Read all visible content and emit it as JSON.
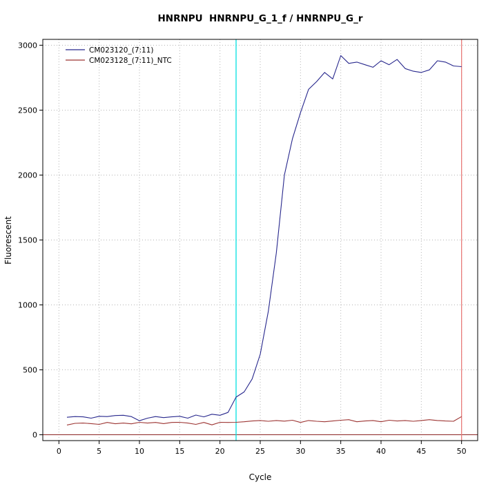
{
  "chart_data": {
    "type": "line",
    "title": "HNRNPU  HNRNPU_G_1_f / HNRNPU_G_r",
    "xlabel": "Cycle",
    "ylabel": "Fluorescent",
    "xlim": [
      0,
      50
    ],
    "ylim": [
      0,
      3000
    ],
    "x_ticks": [
      0,
      5,
      10,
      15,
      20,
      25,
      30,
      35,
      40,
      45,
      50
    ],
    "y_ticks": [
      0,
      500,
      1000,
      1500,
      2000,
      2500,
      3000
    ],
    "grid": true,
    "grid_color": "#b3b3b3",
    "legend_position": "top-left",
    "x": [
      1,
      2,
      3,
      4,
      5,
      6,
      7,
      8,
      9,
      10,
      11,
      12,
      13,
      14,
      15,
      16,
      17,
      18,
      19,
      20,
      21,
      22,
      23,
      24,
      25,
      26,
      27,
      28,
      29,
      30,
      31,
      32,
      33,
      34,
      35,
      36,
      37,
      38,
      39,
      40,
      41,
      42,
      43,
      44,
      45,
      46,
      47,
      48,
      49,
      50
    ],
    "series": [
      {
        "name": "CM023120_(7:11)",
        "color": "#26268c",
        "values": [
          135,
          140,
          138,
          128,
          142,
          140,
          148,
          150,
          140,
          108,
          128,
          140,
          132,
          138,
          142,
          128,
          152,
          138,
          158,
          150,
          172,
          290,
          330,
          430,
          620,
          950,
          1400,
          2000,
          2280,
          2480,
          2660,
          2720,
          2790,
          2740,
          2920,
          2860,
          2870,
          2850,
          2830,
          2880,
          2850,
          2890,
          2820,
          2800,
          2790,
          2810,
          2880,
          2870,
          2840,
          2835
        ]
      },
      {
        "name": "CM023128_(7:11)_NTC",
        "color": "#9c3331",
        "values": [
          75,
          88,
          90,
          86,
          80,
          95,
          85,
          90,
          84,
          96,
          90,
          95,
          86,
          95,
          96,
          90,
          80,
          95,
          76,
          96,
          95,
          96,
          100,
          106,
          110,
          104,
          110,
          105,
          112,
          95,
          110,
          104,
          100,
          106,
          112,
          116,
          100,
          106,
          110,
          100,
          112,
          106,
          110,
          104,
          110,
          116,
          110,
          106,
          104,
          140
        ]
      }
    ],
    "vlines": [
      {
        "x": 22,
        "color": "#00e0e0",
        "name": "threshold-cycle-line"
      },
      {
        "x": 50,
        "color": "#e87a78",
        "name": "end-cycle-line"
      }
    ],
    "hlines": [
      {
        "y": 0,
        "color": "#8b2322",
        "name": "zero-baseline-line"
      }
    ]
  }
}
